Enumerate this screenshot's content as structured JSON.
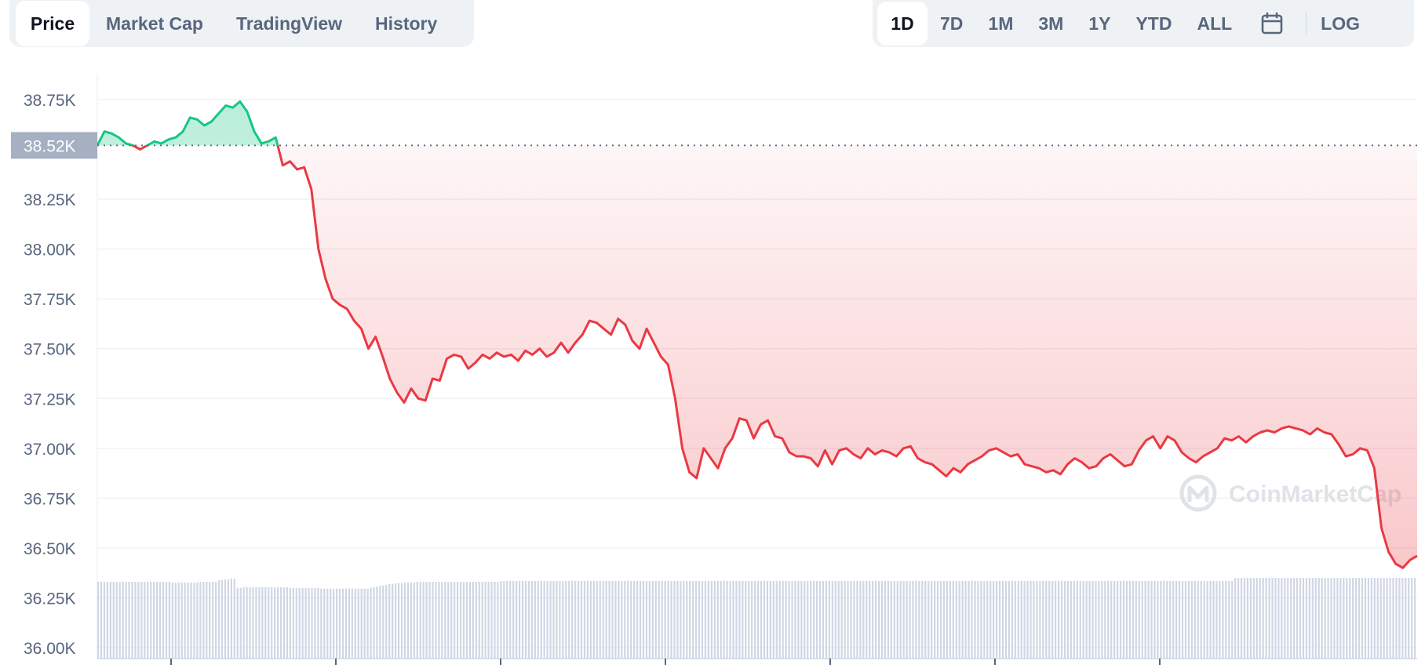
{
  "tabs": {
    "items": [
      {
        "label": "Price",
        "active": true
      },
      {
        "label": "Market Cap",
        "active": false
      },
      {
        "label": "TradingView",
        "active": false
      },
      {
        "label": "History",
        "active": false
      }
    ]
  },
  "ranges": {
    "items": [
      {
        "label": "1D",
        "active": true
      },
      {
        "label": "7D",
        "active": false
      },
      {
        "label": "1M",
        "active": false
      },
      {
        "label": "3M",
        "active": false
      },
      {
        "label": "1Y",
        "active": false
      },
      {
        "label": "YTD",
        "active": false
      },
      {
        "label": "ALL",
        "active": false
      }
    ],
    "calendar_icon": "calendar-icon",
    "log_label": "LOG"
  },
  "watermark": {
    "text": "CoinMarketCap",
    "icon": "coinmarketcap-logo-icon"
  },
  "colors": {
    "up": "#16c784",
    "down": "#ea3943",
    "grid": "#eff2f5",
    "volume": "#cfd6e4",
    "label_bg": "#a6b0c3"
  },
  "chart_data": {
    "type": "line",
    "title": "",
    "xlabel": "",
    "ylabel": "",
    "ylim": [
      36000,
      38800
    ],
    "yticks": [
      "36.00K",
      "36.25K",
      "36.50K",
      "36.75K",
      "37.00K",
      "37.25K",
      "37.50K",
      "37.75K",
      "38.00K",
      "38.25K",
      "38.52K",
      "38.75K"
    ],
    "ytick_values": [
      36000,
      36250,
      36500,
      36750,
      37000,
      37250,
      37500,
      37750,
      38000,
      38250,
      38750
    ],
    "reference": {
      "value": 38520,
      "label": "38.52K"
    },
    "grid": true,
    "x_ticks_labeled": false,
    "series": [
      {
        "values": [
          38520,
          38590,
          38580,
          38560,
          38530,
          38520,
          38500,
          38520,
          38540,
          38530,
          38550,
          38560,
          38590,
          38660,
          38650,
          38620,
          38640,
          38680,
          38720,
          38710,
          38740,
          38690,
          38590,
          38530,
          38540,
          38560,
          38420,
          38440,
          38400,
          38410,
          38300,
          38000,
          37850,
          37750,
          37720,
          37700,
          37640,
          37600,
          37500,
          37560,
          37460,
          37350,
          37280,
          37230,
          37300,
          37250,
          37240,
          37350,
          37340,
          37450,
          37470,
          37460,
          37400,
          37430,
          37470,
          37450,
          37480,
          37460,
          37470,
          37440,
          37490,
          37470,
          37500,
          37460,
          37480,
          37530,
          37480,
          37530,
          37570,
          37640,
          37630,
          37600,
          37570,
          37650,
          37620,
          37540,
          37500,
          37600,
          37530,
          37460,
          37420,
          37250,
          37000,
          36880,
          36850,
          37000,
          36950,
          36900,
          37000,
          37050,
          37150,
          37140,
          37050,
          37120,
          37140,
          37060,
          37050,
          36980,
          36960,
          36960,
          36950,
          36910,
          36990,
          36920,
          36990,
          37000,
          36970,
          36950,
          37000,
          36970,
          36990,
          36980,
          36960,
          37000,
          37010,
          36950,
          36930,
          36920,
          36890,
          36860,
          36900,
          36880,
          36920,
          36940,
          36960,
          36990,
          37000,
          36980,
          36960,
          36970,
          36920,
          36910,
          36900,
          36880,
          36890,
          36870,
          36920,
          36950,
          36930,
          36900,
          36910,
          36950,
          36970,
          36940,
          36910,
          36920,
          36990,
          37040,
          37060,
          37000,
          37060,
          37040,
          36980,
          36950,
          36930,
          36960,
          36980,
          37000,
          37050,
          37040,
          37060,
          37030,
          37060,
          37080,
          37090,
          37080,
          37100,
          37110,
          37100,
          37090,
          37070,
          37100,
          37080,
          37070,
          37020,
          36960,
          36970,
          37000,
          36990,
          36900,
          36600,
          36480,
          36420,
          36400,
          36440,
          36460
        ]
      }
    ],
    "volume_values": [
      1.0,
      1.0,
      1.0,
      1.0,
      1.0,
      1.0,
      1.0,
      1.0,
      1.0,
      1.0,
      1.0,
      1.0,
      1.0,
      1.0,
      1.0,
      1.0,
      1.0,
      1.0,
      1.0,
      1.0,
      1.0,
      1.0,
      1.0,
      1.0,
      0.99,
      0.99,
      0.99,
      0.99,
      0.99,
      0.99,
      0.99,
      0.99,
      0.99,
      1.0,
      1.0,
      1.0,
      1.0,
      1.0,
      1.0,
      1.02,
      1.02,
      1.03,
      1.03,
      1.04,
      1.04,
      0.92,
      0.92,
      0.93,
      0.93,
      0.93,
      0.93,
      0.93,
      0.93,
      0.93,
      0.93,
      0.93,
      0.93,
      0.93,
      0.93,
      0.93,
      0.93,
      0.93,
      0.92,
      0.92,
      0.92,
      0.92,
      0.92,
      0.92,
      0.92,
      0.92,
      0.92,
      0.92,
      0.91,
      0.91,
      0.91,
      0.91,
      0.91,
      0.91,
      0.91,
      0.91,
      0.91,
      0.91,
      0.91,
      0.91,
      0.91,
      0.91,
      0.91,
      0.91,
      0.92,
      0.93,
      0.94,
      0.95,
      0.95,
      0.96,
      0.97,
      0.97,
      0.98,
      0.98,
      0.98,
      0.99,
      0.99,
      0.99,
      0.99,
      1.0,
      1.0,
      1.0,
      1.0,
      1.0,
      1.0,
      1.0,
      1.0,
      1.0,
      1.0,
      1.0,
      1.0,
      1.0,
      1.0,
      1.0,
      1.0,
      1.0,
      1.0,
      1.0,
      1.0,
      1.0,
      1.0,
      1.0,
      1.0,
      1.0,
      1.0,
      1.0,
      1.01,
      1.01,
      1.01,
      1.01,
      1.01,
      1.01,
      1.01,
      1.01,
      1.01,
      1.01,
      1.01,
      1.01,
      1.01,
      1.01,
      1.01,
      1.01,
      1.01,
      1.01,
      1.01,
      1.01,
      1.01,
      1.01,
      1.01,
      1.01,
      1.01,
      1.01,
      1.01,
      1.01,
      1.01,
      1.01,
      1.01,
      1.01,
      1.01,
      1.01,
      1.01,
      1.01,
      1.01,
      1.01,
      1.01,
      1.01,
      1.01,
      1.01,
      1.01,
      1.01,
      1.01,
      1.01,
      1.01,
      1.01,
      1.01,
      1.01,
      1.01,
      1.01,
      1.01,
      1.01,
      1.01,
      1.01,
      1.01,
      1.01,
      1.01,
      1.01,
      1.01,
      1.01,
      1.01,
      1.01,
      1.01,
      1.01,
      1.01,
      1.01,
      1.01,
      1.01,
      1.01,
      1.01,
      1.01,
      1.01,
      1.01,
      1.01,
      1.01,
      1.01,
      1.01,
      1.01,
      1.01,
      1.01,
      1.01,
      1.01,
      1.01,
      1.01,
      1.01,
      1.01,
      1.01,
      1.01,
      1.01,
      1.01,
      1.01,
      1.01,
      1.01,
      1.01,
      1.01,
      1.01,
      1.01,
      1.01,
      1.01,
      1.01,
      1.01,
      1.01,
      1.01,
      1.01,
      1.01,
      1.01,
      1.01,
      1.01,
      1.01,
      1.01,
      1.01,
      1.01,
      1.01,
      1.01,
      1.01,
      1.01,
      1.01,
      1.01,
      1.01,
      1.01,
      1.01,
      1.01,
      1.01,
      1.01,
      1.01,
      1.01,
      1.01,
      1.01,
      1.01,
      1.01,
      1.01,
      1.01,
      1.01,
      1.01,
      1.01,
      1.01,
      1.01,
      1.01,
      1.01,
      1.01,
      1.01,
      1.01,
      1.01,
      1.01,
      1.01,
      1.01,
      1.01,
      1.01,
      1.01,
      1.01,
      1.01,
      1.01,
      1.01,
      1.01,
      1.01,
      1.01,
      1.01,
      1.01,
      1.01,
      1.01,
      1.01,
      1.01,
      1.01,
      1.01,
      1.01,
      1.01,
      1.01,
      1.01,
      1.01,
      1.01,
      1.01,
      1.01,
      1.01,
      1.01,
      1.01,
      1.01,
      1.01,
      1.01,
      1.01,
      1.01,
      1.01,
      1.01,
      1.01,
      1.01,
      1.01,
      1.01,
      1.01,
      1.01,
      1.01,
      1.01,
      1.01,
      1.01,
      1.01,
      1.01,
      1.01,
      1.01,
      1.01,
      1.01,
      1.01,
      1.01,
      1.01,
      1.01,
      1.01,
      1.01,
      1.01,
      1.01,
      1.01,
      1.01,
      1.01,
      1.01,
      1.01,
      1.01,
      1.01,
      1.01,
      1.01,
      1.01,
      1.01,
      1.01,
      1.01,
      1.01,
      1.01,
      1.01,
      1.01,
      1.01,
      1.01,
      1.01,
      1.01,
      1.01,
      1.01,
      1.01,
      1.01,
      1.01,
      1.01,
      1.01,
      1.01,
      1.05,
      1.05,
      1.05,
      1.05,
      1.05,
      1.05,
      1.05,
      1.05,
      1.05,
      1.05,
      1.05,
      1.05,
      1.05,
      1.05,
      1.05,
      1.05,
      1.05,
      1.05,
      1.05,
      1.05,
      1.05,
      1.05,
      1.05,
      1.05,
      1.05,
      1.05,
      1.05,
      1.05,
      1.05,
      1.05,
      1.05,
      1.05,
      1.05,
      1.05,
      1.05,
      1.05,
      1.05,
      1.05,
      1.05,
      1.05,
      1.05,
      1.05,
      1.05,
      1.05,
      1.05,
      1.05,
      1.05,
      1.05,
      1.05,
      1.05,
      1.05,
      1.05,
      1.05,
      1.05,
      1.05,
      1.05,
      1.05,
      1.05,
      1.05
    ]
  }
}
